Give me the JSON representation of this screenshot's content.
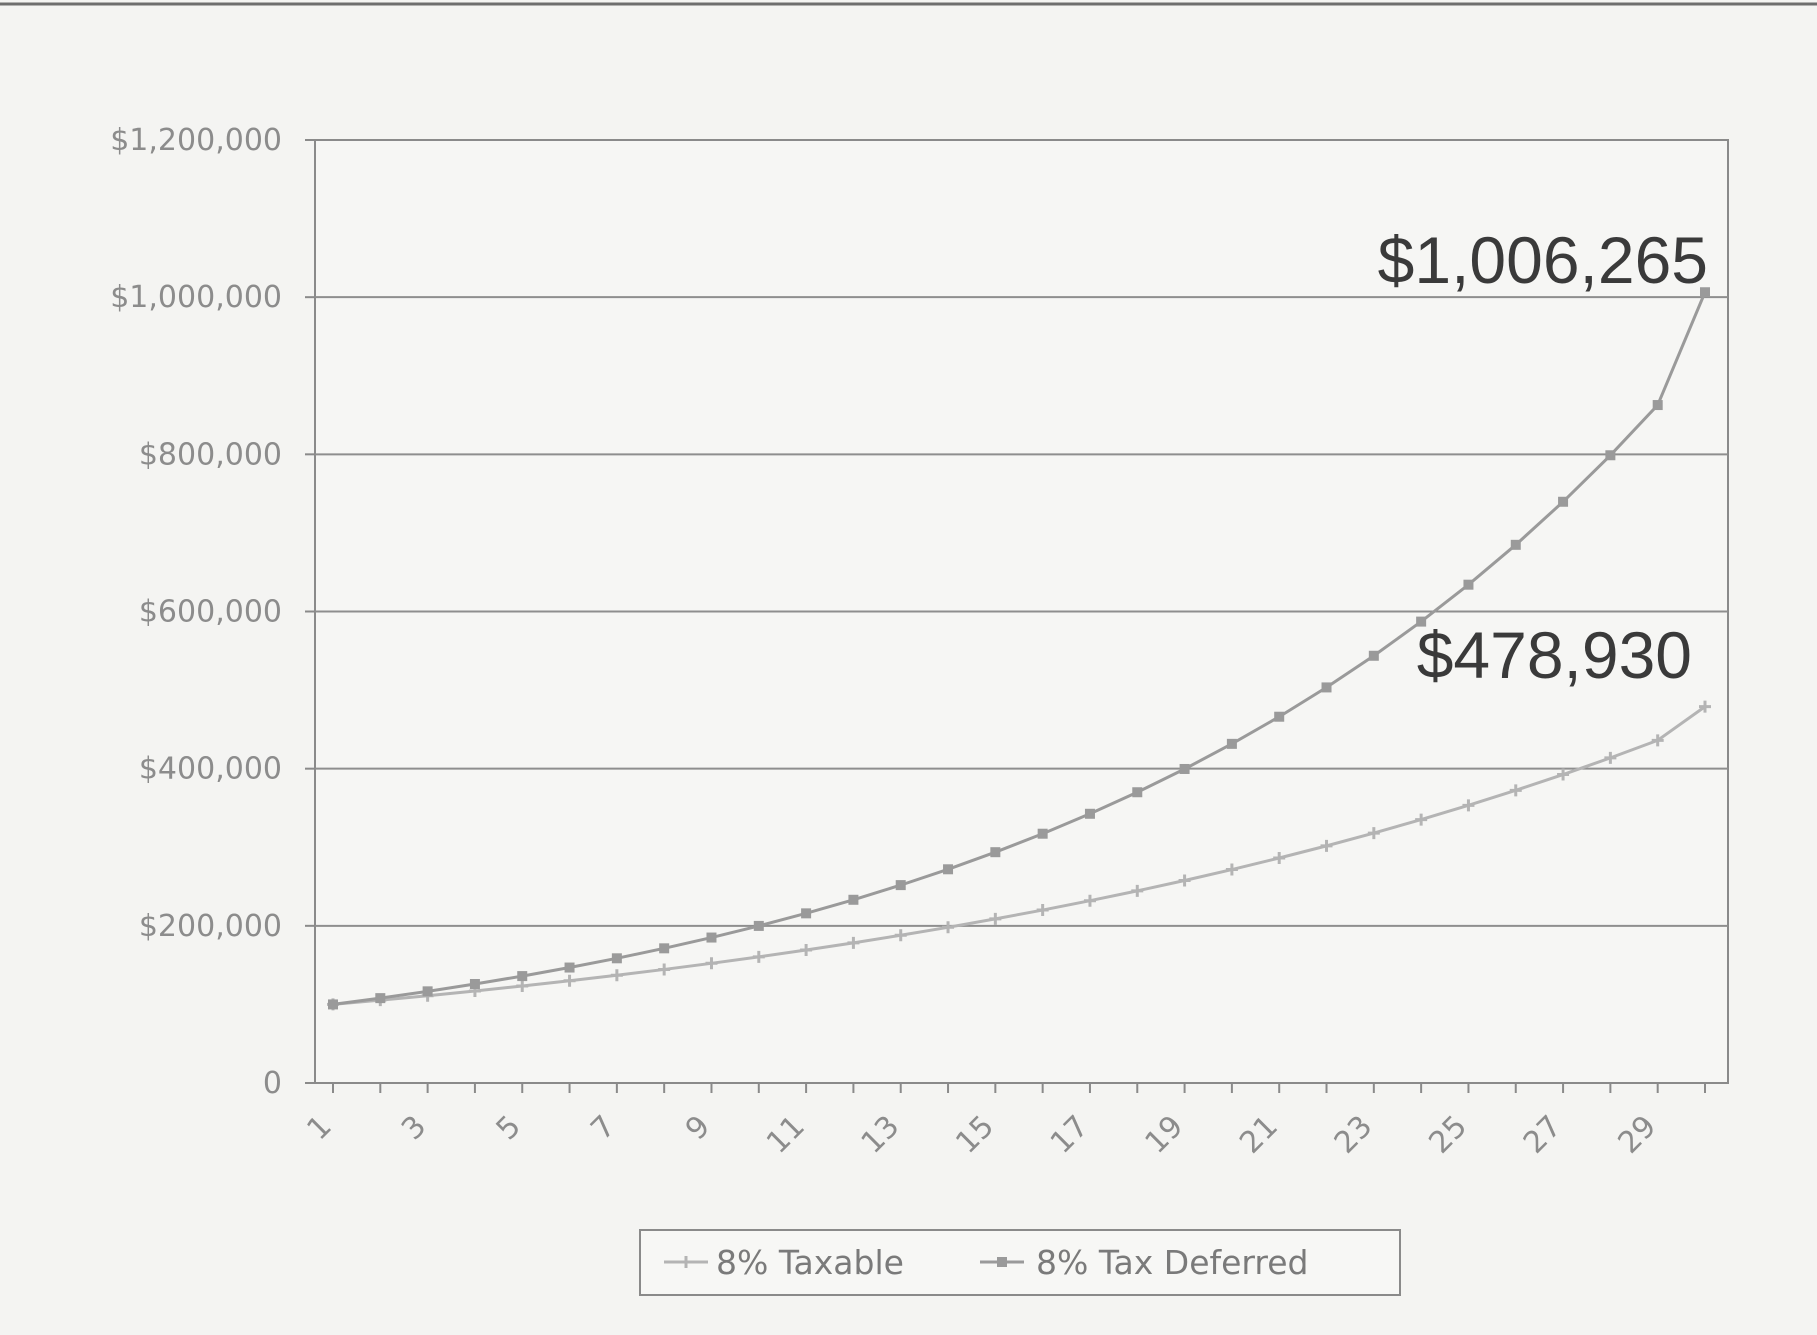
{
  "chart_data": {
    "type": "line",
    "title": "",
    "xlabel": "",
    "ylabel": "",
    "x": [
      1,
      2,
      3,
      4,
      5,
      6,
      7,
      8,
      9,
      10,
      11,
      12,
      13,
      14,
      15,
      16,
      17,
      18,
      19,
      20,
      21,
      22,
      23,
      24,
      25,
      26,
      27,
      28,
      29,
      30
    ],
    "x_tick_labels": [
      "1",
      "3",
      "5",
      "7",
      "9",
      "11",
      "13",
      "15",
      "17",
      "19",
      "21",
      "23",
      "25",
      "27",
      "29"
    ],
    "y_tick_labels": [
      "0",
      "$200,000",
      "$400,000",
      "$600,000",
      "$800,000",
      "$1,000,000",
      "$1,200,000"
    ],
    "ylim": [
      0,
      1200000
    ],
    "grid": "horizontal",
    "legend_position": "bottom",
    "series": [
      {
        "name": "8% Taxable",
        "color": "#b4b4b4",
        "marker": "plus",
        "values": [
          100000,
          105400,
          111090,
          117090,
          123410,
          130080,
          137100,
          144510,
          152310,
          160540,
          169200,
          178340,
          187970,
          198120,
          208820,
          220100,
          231980,
          244510,
          257710,
          271630,
          286300,
          301760,
          318050,
          335230,
          353330,
          372410,
          392520,
          413710,
          436050,
          478930
        ]
      },
      {
        "name": "8% Tax Deferred",
        "color": "#9a9a9a",
        "marker": "square",
        "values": [
          100000,
          108000,
          116640,
          125970,
          136050,
          146930,
          158690,
          171380,
          185090,
          199900,
          215890,
          233160,
          251820,
          271960,
          293720,
          317220,
          342590,
          370000,
          399600,
          431570,
          466100,
          503390,
          543660,
          587150,
          634120,
          684850,
          739640,
          798810,
          862710,
          1006265
        ]
      }
    ],
    "annotations": [
      {
        "text": "$1,006,265",
        "x": 30,
        "y": 1006265
      },
      {
        "text": "$478,930",
        "x": 30,
        "y": 478930
      }
    ]
  }
}
